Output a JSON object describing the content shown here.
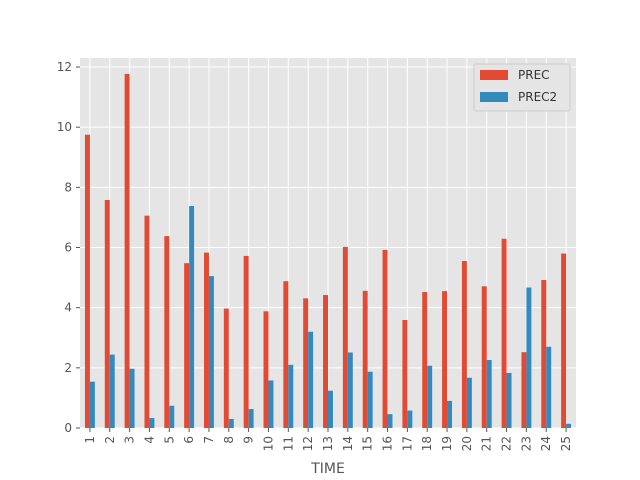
{
  "chart_data": {
    "type": "bar",
    "title": "",
    "xlabel": "TIME",
    "ylabel": "",
    "ylim": [
      0,
      12.3
    ],
    "yticks": [
      0,
      2,
      4,
      6,
      8,
      10,
      12
    ],
    "grid": true,
    "legend_position": "top-right",
    "categories": [
      "1",
      "2",
      "3",
      "4",
      "5",
      "6",
      "7",
      "8",
      "9",
      "10",
      "11",
      "12",
      "13",
      "14",
      "15",
      "16",
      "17",
      "18",
      "19",
      "20",
      "21",
      "22",
      "23",
      "24",
      "25"
    ],
    "series": [
      {
        "name": "PREC",
        "color": "#E24A33",
        "values": [
          9.75,
          7.58,
          11.77,
          7.06,
          6.38,
          5.48,
          5.83,
          3.97,
          5.72,
          3.88,
          4.88,
          4.31,
          4.42,
          6.02,
          4.56,
          5.92,
          3.59,
          4.52,
          4.55,
          5.55,
          4.71,
          6.29,
          2.52,
          4.92,
          5.8
        ]
      },
      {
        "name": "PREC2",
        "color": "#348ABD",
        "values": [
          1.54,
          2.44,
          1.97,
          0.33,
          0.74,
          7.38,
          5.05,
          0.3,
          0.63,
          1.58,
          2.1,
          3.2,
          1.24,
          2.51,
          1.87,
          0.46,
          0.58,
          2.07,
          0.9,
          1.67,
          2.26,
          1.83,
          4.67,
          2.7,
          0.14
        ]
      }
    ]
  }
}
